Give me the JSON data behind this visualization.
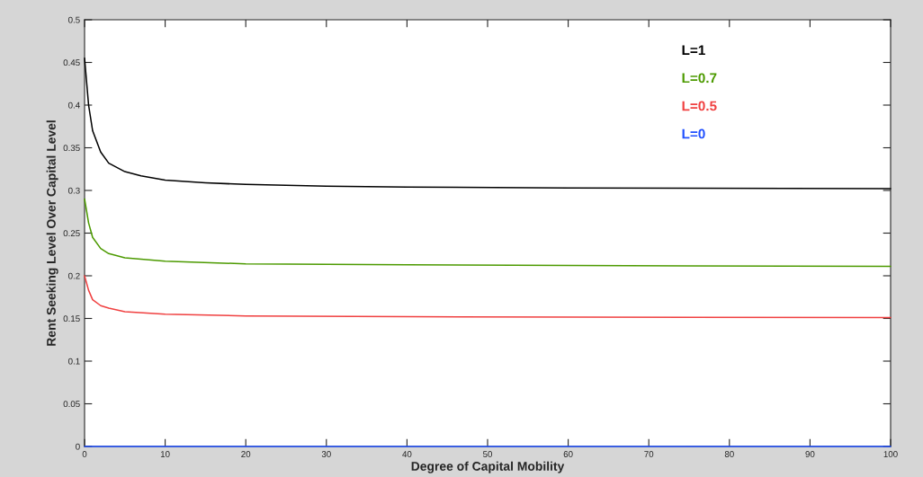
{
  "chart_data": {
    "type": "line",
    "xlabel": "Degree of Capital Mobility",
    "ylabel": "Rent Seeking Level Over Capital Level",
    "xlim": [
      0,
      100
    ],
    "ylim": [
      0,
      0.5
    ],
    "xticks": [
      0,
      10,
      20,
      30,
      40,
      50,
      60,
      70,
      80,
      90,
      100
    ],
    "yticks": [
      0,
      0.05,
      0.1,
      0.15,
      0.2,
      0.25,
      0.3,
      0.35,
      0.4,
      0.45,
      0.5
    ],
    "grid": false,
    "legend": "top right",
    "marker": "none",
    "line_style": "solid",
    "series": [
      {
        "name": "L=1",
        "color": "#000000",
        "x": [
          0,
          0.5,
          1,
          2,
          3,
          5,
          7,
          10,
          15,
          20,
          30,
          40,
          60,
          100
        ],
        "values": [
          0.455,
          0.4,
          0.37,
          0.345,
          0.332,
          0.322,
          0.317,
          0.312,
          0.309,
          0.307,
          0.305,
          0.304,
          0.303,
          0.302
        ]
      },
      {
        "name": "L=0.7",
        "color": "#4c9a00",
        "x": [
          0,
          0.5,
          1,
          2,
          3,
          5,
          10,
          20,
          40,
          60,
          100
        ],
        "values": [
          0.29,
          0.262,
          0.245,
          0.232,
          0.226,
          0.221,
          0.217,
          0.214,
          0.213,
          0.212,
          0.211
        ]
      },
      {
        "name": "L=0.5",
        "color": "#f04040",
        "x": [
          0,
          0.5,
          1,
          2,
          3,
          5,
          10,
          20,
          40,
          100
        ],
        "values": [
          0.2,
          0.183,
          0.172,
          0.165,
          0.162,
          0.158,
          0.155,
          0.153,
          0.152,
          0.151
        ]
      },
      {
        "name": "L=0",
        "color": "#2050ff",
        "x": [
          0,
          100
        ],
        "values": [
          0,
          0
        ]
      }
    ]
  }
}
